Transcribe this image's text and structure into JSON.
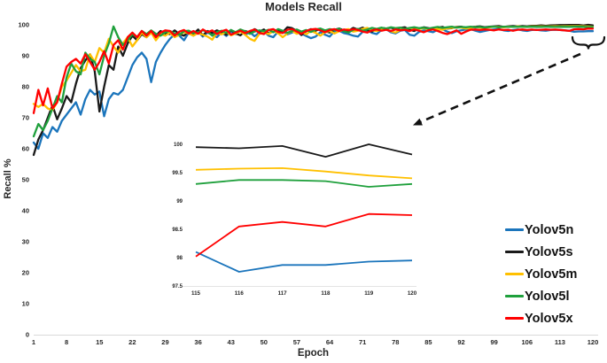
{
  "legend": {
    "items": [
      {
        "label": "Yolov5n",
        "color": "#1B75BC"
      },
      {
        "label": "Yolov5s",
        "color": "#1A1A1A"
      },
      {
        "label": "Yolov5m",
        "color": "#FFC000"
      },
      {
        "label": "Yolov5l",
        "color": "#1FA03C"
      },
      {
        "label": "Yolov5x",
        "color": "#FF0000"
      }
    ]
  },
  "chart_data": [
    {
      "id": "main",
      "type": "line",
      "title": "Models Recall",
      "xlabel": "Epoch",
      "ylabel": "Recall %",
      "xlim": [
        1,
        120
      ],
      "ylim": [
        0,
        100
      ],
      "grid": false,
      "legend_position": "right",
      "xticks": [
        1,
        8,
        15,
        22,
        29,
        36,
        43,
        50,
        57,
        64,
        71,
        78,
        85,
        92,
        99,
        106,
        113,
        120
      ],
      "yticks": [
        0,
        10,
        20,
        30,
        40,
        50,
        60,
        70,
        80,
        90,
        100
      ],
      "x_start": 1,
      "x_step": 1,
      "series": [
        {
          "name": "Yolov5n",
          "color": "#1B75BC",
          "values": [
            62,
            60,
            65,
            63.5,
            67,
            65.5,
            69,
            71,
            73,
            75,
            71,
            76,
            79,
            77.5,
            78.5,
            70.5,
            76,
            78,
            77.5,
            79,
            83,
            87,
            89.5,
            91,
            89,
            81.5,
            88,
            91,
            93.5,
            95.5,
            97,
            96.5,
            95,
            97.5,
            96.5,
            97.8,
            96.2,
            97.5,
            96.8,
            96,
            97.6,
            96.4,
            97.8,
            97,
            98,
            96.8,
            97.6,
            96.3,
            97.4,
            97.9,
            96.5,
            96,
            97.8,
            98,
            96.9,
            97.5,
            98,
            97.2,
            96.4,
            95.7,
            96.2,
            97.6,
            96.8,
            96.2,
            97.9,
            98.1,
            97.3,
            97,
            96.5,
            96.2,
            97.7,
            98.2,
            97.4,
            97,
            98.3,
            98.6,
            97.6,
            97.2,
            98.1,
            98.3,
            96.8,
            96.5,
            97.7,
            98.2,
            97.9,
            97.6,
            98.4,
            98.6,
            97.8,
            97.3,
            97.9,
            98.2,
            98.5,
            98.6,
            98.1,
            97.7,
            98,
            98.3,
            98.5,
            98.6,
            98.2,
            98,
            98.3,
            98.5,
            98.2,
            98,
            98.3,
            98.4,
            98.2,
            98.1,
            98.3,
            98.4,
            98.3,
            98.2,
            98.1,
            97.75,
            97.87,
            97.87,
            97.93,
            97.95
          ]
        },
        {
          "name": "Yolov5s",
          "color": "#1A1A1A",
          "values": [
            58,
            63,
            66,
            70,
            74,
            69.5,
            73,
            77,
            75,
            81,
            86,
            88.5,
            90.5,
            85,
            72,
            80,
            87,
            85.5,
            93,
            90,
            94,
            96.5,
            95,
            97,
            96,
            97.5,
            96.5,
            98,
            97.2,
            97,
            98.2,
            97,
            96.5,
            97.8,
            97.1,
            98.5,
            96.6,
            98,
            97.4,
            98.2,
            97.6,
            96.8,
            98.3,
            97.2,
            96.6,
            98,
            97.5,
            98.6,
            97.8,
            98.5,
            97.2,
            97.9,
            98.4,
            97.6,
            99.2,
            98.9,
            98,
            96.7,
            97.9,
            98.6,
            98.1,
            98.7,
            97.9,
            97.5,
            98.4,
            98.8,
            98.2,
            98,
            99,
            98.5,
            99.1,
            98.3,
            97.8,
            98.6,
            99,
            98.8,
            99.1,
            98.6,
            99,
            99.2,
            98.4,
            98,
            98.8,
            99.2,
            98.9,
            98.6,
            99.1,
            99.3,
            98.8,
            98.9,
            99.3,
            99.4,
            99,
            99.2,
            99.4,
            99.5,
            99.2,
            99.4,
            99.5,
            99.6,
            99.3,
            99.5,
            99.6,
            99.5,
            99.6,
            99.5,
            99.7,
            99.7,
            99.8,
            99.7,
            99.8,
            99.85,
            99.9,
            99.9,
            99.95,
            99.93,
            99.97,
            99.78,
            100,
            99.82
          ]
        },
        {
          "name": "Yolov5m",
          "color": "#FFC000",
          "values": [
            74.5,
            73.5,
            74.5,
            73,
            72.5,
            75,
            80,
            82,
            84.5,
            87,
            85,
            85.5,
            90.5,
            88,
            92.5,
            91,
            95.5,
            93,
            91,
            94,
            96,
            93,
            95,
            97.5,
            96,
            97.5,
            95,
            97,
            96.5,
            97.5,
            96,
            96.8,
            97.6,
            97.2,
            96.5,
            97.3,
            96.8,
            96.2,
            95.2,
            97.4,
            96.9,
            97.7,
            96.6,
            97.2,
            97.8,
            96.8,
            95.5,
            94.8,
            97,
            97.6,
            97,
            98,
            97.3,
            96,
            97.2,
            98,
            97.1,
            97.8,
            96.9,
            98,
            97.4,
            96.5,
            97.6,
            98,
            97.2,
            97.9,
            98.3,
            98.6,
            97.8,
            98.1,
            98.7,
            99,
            98.2,
            98,
            98.4,
            98.6,
            97.9,
            97.5,
            98.3,
            98.6,
            98.9,
            99,
            98.6,
            98.9,
            98.5,
            99,
            98.6,
            98.4,
            98.9,
            99,
            99.2,
            99.1,
            98.8,
            99,
            99.3,
            99.1,
            99,
            99.2,
            99.4,
            99.3,
            99.2,
            99.4,
            99.3,
            99.5,
            99.4,
            99.3,
            99.5,
            99.45,
            99.5,
            99.45,
            99.5,
            99.52,
            99.5,
            99.54,
            99.55,
            99.57,
            99.58,
            99.52,
            99.45,
            99.4
          ]
        },
        {
          "name": "Yolov5l",
          "color": "#1FA03C",
          "values": [
            64,
            68,
            66,
            69,
            73,
            77,
            75,
            83,
            87.5,
            85,
            84,
            91,
            89,
            88,
            84,
            90,
            94,
            99.5,
            96,
            93.5,
            95,
            97,
            96,
            98,
            97,
            98.2,
            97.1,
            96.5,
            97.6,
            98,
            97.2,
            96.8,
            97.9,
            98.1,
            97.3,
            97.6,
            98.2,
            97.8,
            96.5,
            97.7,
            98.1,
            97.4,
            98.3,
            97.6,
            98.5,
            97.9,
            97.1,
            97.8,
            98.2,
            97.9,
            98.4,
            97.6,
            98.6,
            98.1,
            97.4,
            98,
            98.5,
            97.8,
            98.3,
            97.7,
            98.5,
            98.8,
            98.2,
            98.6,
            98.3,
            98.7,
            97.9,
            97.5,
            98.4,
            98.7,
            98.1,
            98.5,
            99,
            98.7,
            99.1,
            98.8,
            99.2,
            98.9,
            99.1,
            98.7,
            99,
            99.2,
            98.9,
            99.1,
            98.8,
            99.1,
            99.3,
            99,
            99.2,
            99.4,
            99.1,
            99.3,
            99.2,
            99.4,
            99.2,
            99.3,
            99.1,
            99.3,
            99.4,
            99.2,
            99.4,
            99.3,
            99.4,
            99.35,
            99.4,
            99.3,
            99.4,
            99.35,
            99.3,
            99.4,
            99.35,
            99.32,
            99.35,
            99.33,
            99.3,
            99.37,
            99.37,
            99.35,
            99.25,
            99.3
          ]
        },
        {
          "name": "Yolov5x",
          "color": "#FF0000",
          "values": [
            71.5,
            79,
            74,
            79.5,
            73,
            75,
            81,
            86.5,
            88,
            89,
            87.5,
            90.5,
            88,
            85.5,
            88,
            91.5,
            87.5,
            93.5,
            95,
            92,
            96,
            97.5,
            96,
            98,
            96.5,
            98,
            96,
            97.5,
            98.2,
            98,
            96.5,
            97.8,
            98.3,
            97.2,
            98,
            97.1,
            98.5,
            97.6,
            98.2,
            97,
            97.9,
            98.4,
            96.8,
            97.5,
            98.1,
            97.3,
            98,
            98.5,
            97.4,
            97,
            98.3,
            98.6,
            97.7,
            97.3,
            98.4,
            98.6,
            97.8,
            97.1,
            98,
            98.5,
            98.7,
            98.2,
            97.6,
            98.3,
            98.6,
            98,
            98.5,
            98.2,
            98.6,
            98.3,
            97.8,
            97.5,
            98.2,
            98.5,
            98.1,
            98.4,
            98,
            98.5,
            98.2,
            98.4,
            98,
            98.5,
            98.1,
            97.6,
            98.2,
            98.5,
            98,
            97.4,
            97,
            97.6,
            98.2,
            97.1,
            97.8,
            98.4,
            98.5,
            98.3,
            98.5,
            98.4,
            98.2,
            98.5,
            98.3,
            98.4,
            98.1,
            98.4,
            98.5,
            98.3,
            98.45,
            98.3,
            98.4,
            98.5,
            98.4,
            98.45,
            98.35,
            98.2,
            98.02,
            98.55,
            98.63,
            98.55,
            98.77,
            98.75
          ]
        }
      ]
    },
    {
      "id": "inset",
      "type": "line",
      "xlim": [
        115,
        120
      ],
      "ylim": [
        97.5,
        100
      ],
      "grid": false,
      "xticks": [
        115,
        116,
        117,
        118,
        119,
        120
      ],
      "yticks": [
        97.5,
        98,
        98.5,
        99,
        99.5,
        100
      ],
      "x": [
        115,
        116,
        117,
        118,
        119,
        120
      ],
      "series": [
        {
          "name": "Yolov5n",
          "color": "#1B75BC",
          "values": [
            98.1,
            97.75,
            97.87,
            97.87,
            97.93,
            97.95
          ]
        },
        {
          "name": "Yolov5s",
          "color": "#1A1A1A",
          "values": [
            99.95,
            99.93,
            99.97,
            99.78,
            100,
            99.82
          ]
        },
        {
          "name": "Yolov5m",
          "color": "#FFC000",
          "values": [
            99.55,
            99.57,
            99.58,
            99.52,
            99.45,
            99.4
          ]
        },
        {
          "name": "Yolov5l",
          "color": "#1FA03C",
          "values": [
            99.3,
            99.37,
            99.37,
            99.35,
            99.25,
            99.3
          ]
        },
        {
          "name": "Yolov5x",
          "color": "#FF0000",
          "values": [
            98.02,
            98.55,
            98.63,
            98.55,
            98.77,
            98.75
          ]
        }
      ]
    }
  ]
}
